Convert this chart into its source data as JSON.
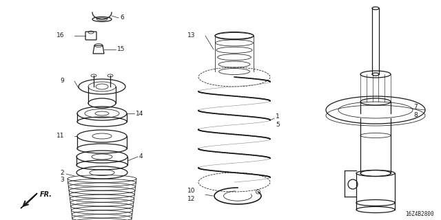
{
  "background_color": "#ffffff",
  "line_color": "#1a1a1a",
  "text_color": "#1a1a1a",
  "part_number_code": "16Z4B2800",
  "fr_label": "FR."
}
